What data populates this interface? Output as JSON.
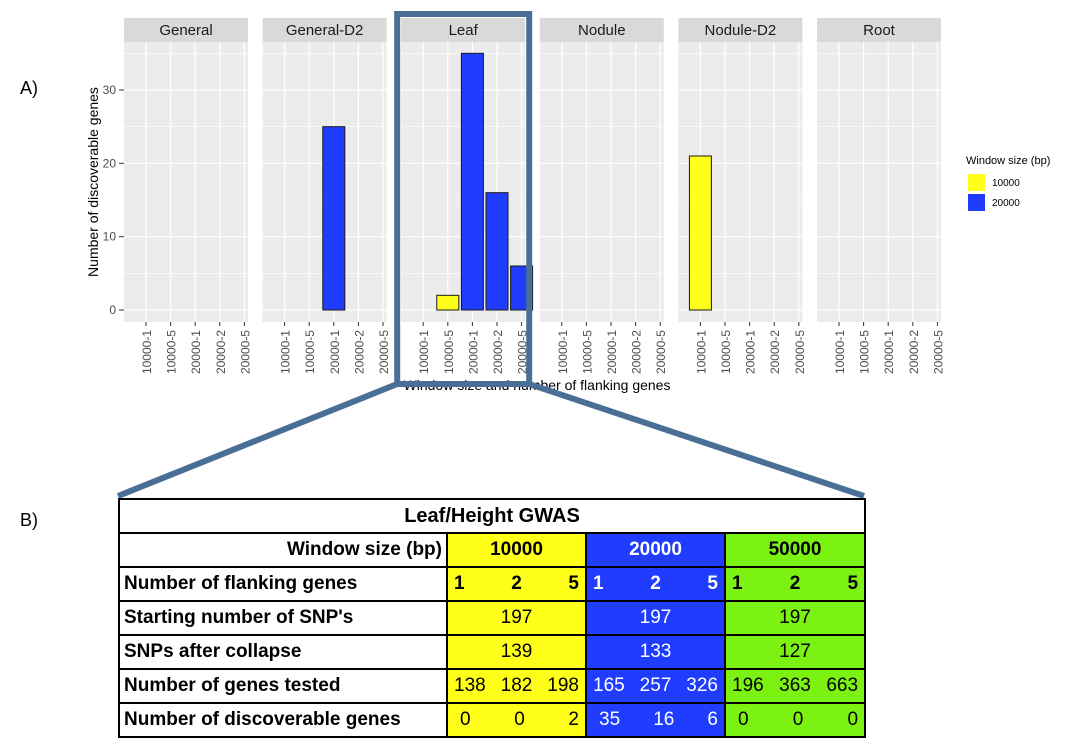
{
  "labels": {
    "panel_a": "A)",
    "panel_b": "B)"
  },
  "chart_data": {
    "type": "bar",
    "facets": [
      "General",
      "General-D2",
      "Leaf",
      "Nodule",
      "Nodule-D2",
      "Root"
    ],
    "categories": [
      "10000-1",
      "10000-5",
      "20000-1",
      "20000-2",
      "20000-5"
    ],
    "series": [
      {
        "name": "10000",
        "color": "#ffff1a",
        "values": {
          "General": [
            0,
            0,
            0,
            0,
            0
          ],
          "General-D2": [
            0,
            0,
            0,
            0,
            0
          ],
          "Leaf": [
            0,
            2,
            0,
            0,
            0
          ],
          "Nodule": [
            0,
            0,
            0,
            0,
            0
          ],
          "Nodule-D2": [
            21,
            0,
            0,
            0,
            0
          ],
          "Root": [
            0,
            0,
            0,
            0,
            0
          ]
        }
      },
      {
        "name": "20000",
        "color": "#1f3cff",
        "values": {
          "General": [
            0,
            0,
            0,
            0,
            0
          ],
          "General-D2": [
            0,
            0,
            25,
            0,
            0
          ],
          "Leaf": [
            0,
            0,
            35,
            16,
            6
          ],
          "Nodule": [
            0,
            0,
            0,
            0,
            0
          ],
          "Nodule-D2": [
            0,
            0,
            0,
            0,
            0
          ],
          "Root": [
            0,
            0,
            0,
            0,
            0
          ]
        }
      }
    ],
    "xlabel": "Window size and number of flanking genes",
    "ylabel": "Number of discoverable genes",
    "ylim": [
      0,
      37
    ],
    "yticks": [
      0,
      10,
      20,
      30
    ],
    "legend_title": "Window size (bp)",
    "legend_position": "right",
    "grid": true,
    "highlight_facet": "Leaf",
    "highlight_color": "#4a6f96"
  },
  "table": {
    "title": "Leaf/Height GWAS",
    "window_label": "Window size (bp)",
    "windows": [
      "10000",
      "20000",
      "50000"
    ],
    "flanking_label": "Number of flanking genes",
    "flanking": [
      "1",
      "2",
      "5"
    ],
    "rows": [
      {
        "label": "Starting number of SNP's",
        "values": [
          "197",
          "197",
          "197"
        ]
      },
      {
        "label": "SNPs after collapse",
        "values": [
          "139",
          "133",
          "127"
        ]
      }
    ],
    "genes_tested_label": "Number of genes tested",
    "genes_tested": [
      [
        "138",
        "182",
        "198"
      ],
      [
        "165",
        "257",
        "326"
      ],
      [
        "196",
        "363",
        "663"
      ]
    ],
    "discoverable_label": "Number of discoverable genes",
    "discoverable": [
      [
        "0",
        "0",
        "2"
      ],
      [
        "35",
        "16",
        "6"
      ],
      [
        "0",
        "0",
        "0"
      ]
    ]
  }
}
